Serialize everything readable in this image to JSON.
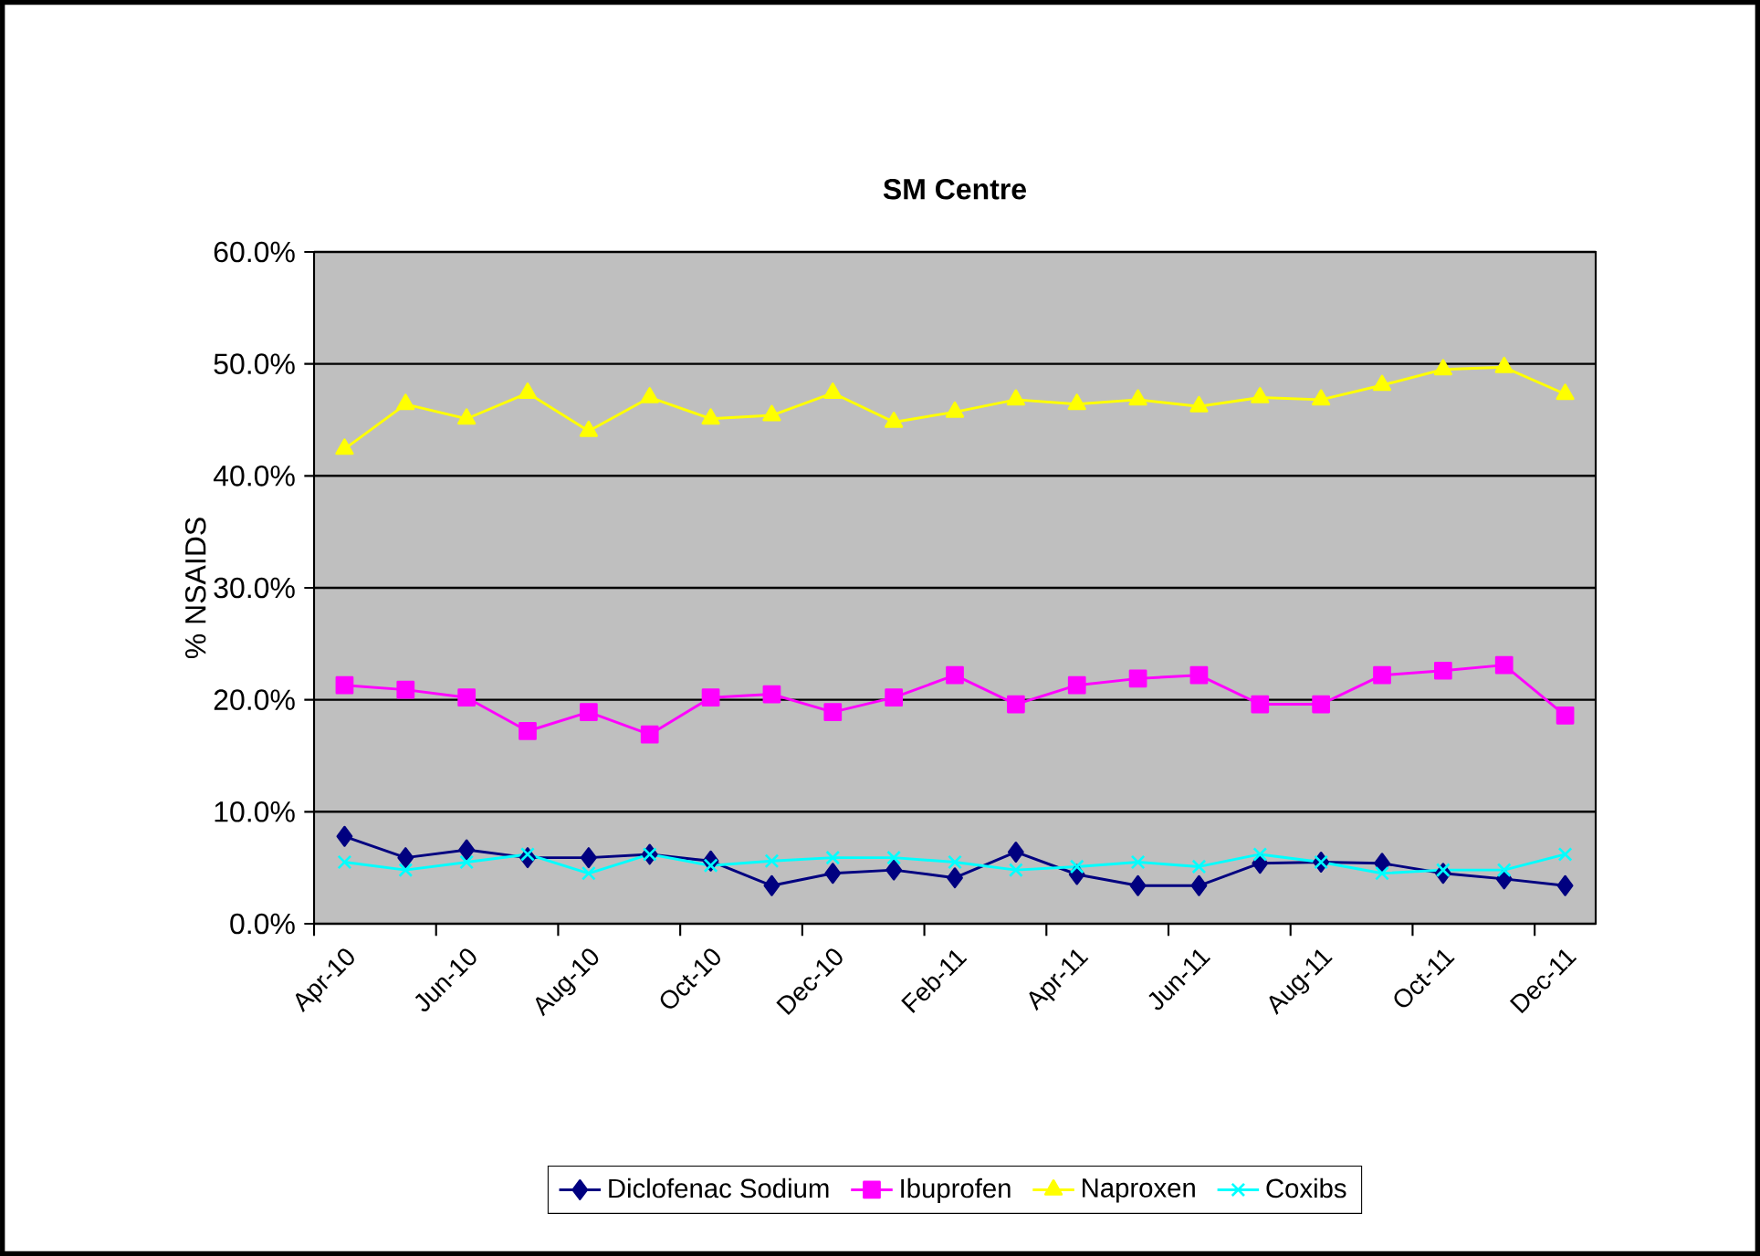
{
  "chart_data": {
    "type": "line",
    "title": "SM Centre",
    "ylabel": "% NSAIDS",
    "categories": [
      "Apr-10",
      null,
      "Jun-10",
      null,
      "Aug-10",
      null,
      "Oct-10",
      null,
      "Dec-10",
      null,
      "Feb-11",
      null,
      "Apr-11",
      null,
      "Jun-11",
      null,
      "Aug-11",
      null,
      "Oct-11",
      null,
      "Dec-11"
    ],
    "series": [
      {
        "name": "Diclofenac Sodium",
        "color": "#000080",
        "marker": "diamond",
        "values": [
          7.8,
          5.9,
          6.6,
          5.9,
          5.9,
          6.2,
          5.6,
          3.4,
          4.5,
          4.8,
          4.1,
          6.4,
          4.4,
          3.4,
          3.4,
          5.4,
          5.5,
          5.4,
          4.5,
          4.0,
          3.4
        ]
      },
      {
        "name": "Ibuprofen",
        "color": "#ff00ff",
        "marker": "square",
        "values": [
          21.3,
          20.9,
          20.2,
          17.2,
          18.9,
          16.9,
          20.2,
          20.5,
          18.9,
          20.2,
          22.2,
          19.6,
          21.3,
          21.9,
          22.2,
          19.6,
          19.6,
          22.2,
          22.6,
          23.1,
          18.6
        ]
      },
      {
        "name": "Naproxen",
        "color": "#ffff00",
        "marker": "triangle",
        "values": [
          42.4,
          46.4,
          45.1,
          47.4,
          44.0,
          47.0,
          45.1,
          45.4,
          47.4,
          44.8,
          45.7,
          46.8,
          46.4,
          46.8,
          46.2,
          47.0,
          46.8,
          48.1,
          49.5,
          49.7,
          47.3
        ]
      },
      {
        "name": "Coxibs",
        "color": "#00ffff",
        "marker": "cross",
        "values": [
          5.5,
          4.8,
          5.5,
          6.2,
          4.5,
          6.2,
          5.2,
          5.6,
          5.9,
          5.9,
          5.5,
          4.8,
          5.1,
          5.5,
          5.1,
          6.2,
          5.5,
          4.5,
          4.8,
          4.8,
          6.2
        ]
      }
    ],
    "ylim": [
      0,
      60
    ],
    "yticks": [
      {
        "value": 0,
        "label": "0.0%"
      },
      {
        "value": 10,
        "label": "10.0%"
      },
      {
        "value": 20,
        "label": "20.0%"
      },
      {
        "value": 30,
        "label": "30.0%"
      },
      {
        "value": 40,
        "label": "40.0%"
      },
      {
        "value": 50,
        "label": "50.0%"
      },
      {
        "value": 60,
        "label": "60.0%"
      }
    ],
    "grid": "y",
    "legend": "bottom",
    "line_style": "solid"
  }
}
